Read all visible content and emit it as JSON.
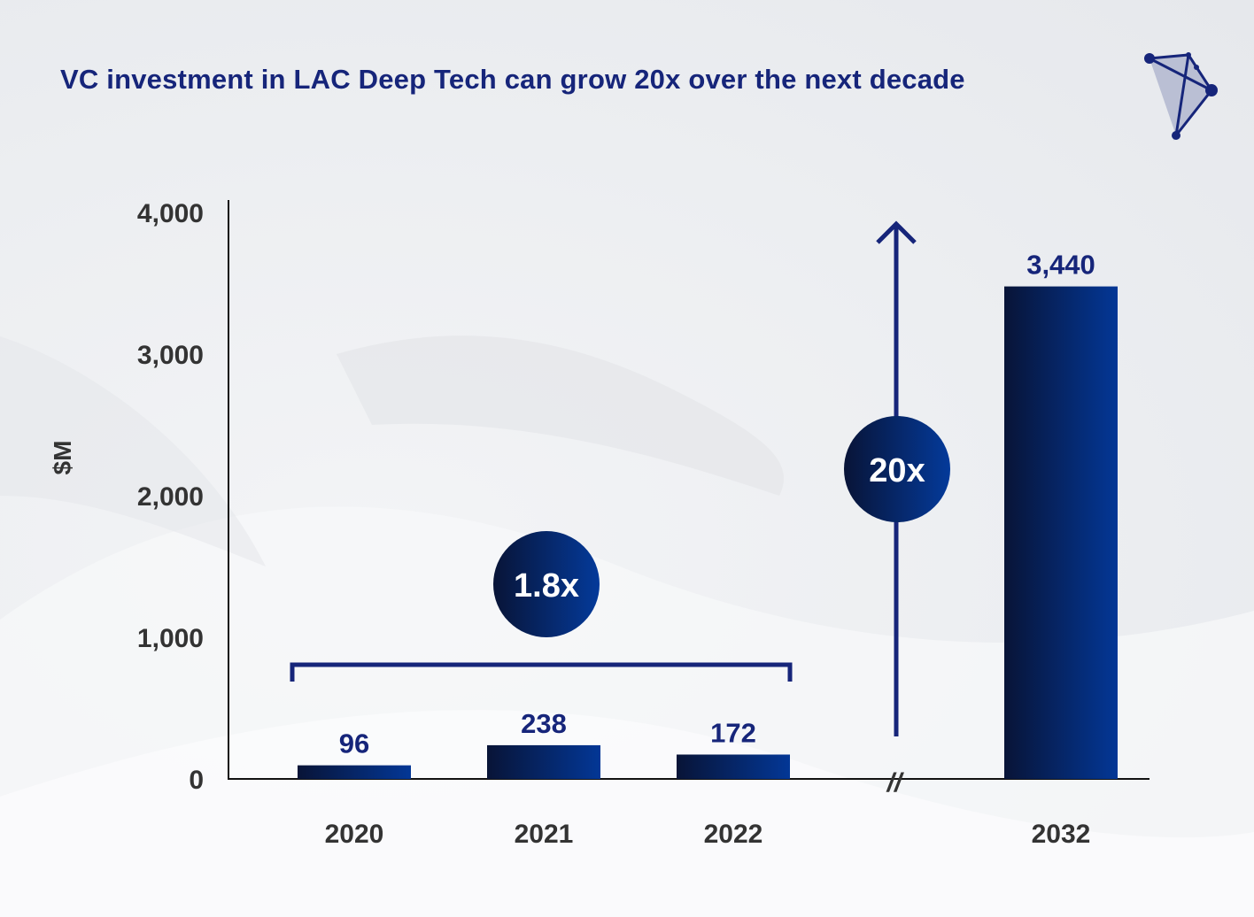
{
  "title": "VC investment in LAC Deep Tech can grow 20x over the next decade",
  "logo": {
    "icon": "network-triangle-logo-icon"
  },
  "colors": {
    "accent": "#16257a",
    "bar_start": "#081437",
    "bar_end": "#033796"
  },
  "chart_data": {
    "type": "bar",
    "title": "VC investment in LAC Deep Tech can grow 20x over the next decade",
    "xlabel": "",
    "ylabel": "$M",
    "categories": [
      "2020",
      "2021",
      "2022",
      "2032"
    ],
    "values": [
      96,
      238,
      172,
      3440
    ],
    "value_labels": [
      "96",
      "238",
      "172",
      "3,440"
    ],
    "ylim": [
      0,
      4000
    ],
    "yticks": [
      0,
      1000,
      2000,
      3000,
      4000
    ],
    "ytick_labels": [
      "0",
      "1,000",
      "2,000",
      "3,000",
      "4,000"
    ],
    "axis_break_between": [
      "2022",
      "2032"
    ],
    "axis_break_label": "//",
    "grid": false,
    "annotations": [
      {
        "label": "1.8x",
        "type": "bracket",
        "spans": [
          "2020",
          "2022"
        ]
      },
      {
        "label": "20x",
        "type": "arrow",
        "from": "2022",
        "to": "2032"
      }
    ]
  }
}
